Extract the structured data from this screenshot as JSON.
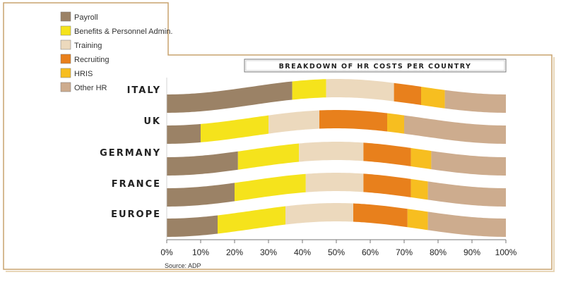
{
  "chart_data": {
    "type": "bar",
    "stacked": true,
    "orientation": "horizontal",
    "title": "BREAKDOWN OF HR COSTS PER COUNTRY",
    "source": "Source: ADP",
    "categories": [
      "ITALY",
      "UK",
      "GERMANY",
      "FRANCE",
      "EUROPE"
    ],
    "x_ticks": [
      "0%",
      "10%",
      "20%",
      "30%",
      "40%",
      "50%",
      "60%",
      "70%",
      "80%",
      "90%",
      "100%"
    ],
    "xlim": [
      0,
      100
    ],
    "legend_position": "top-left",
    "series": [
      {
        "name": "Payroll",
        "color": "#9b8266",
        "values": [
          37,
          10,
          21,
          20,
          15
        ]
      },
      {
        "name": "Benefits & Personnel Admin.",
        "color": "#f5e31c",
        "values": [
          10,
          20,
          18,
          21,
          20
        ]
      },
      {
        "name": "Training",
        "color": "#ecd9bd",
        "values": [
          20,
          15,
          19,
          17,
          20
        ]
      },
      {
        "name": "Recruiting",
        "color": "#e8801c",
        "values": [
          8,
          20,
          14,
          14,
          16
        ]
      },
      {
        "name": "HRIS",
        "color": "#f7be20",
        "values": [
          7,
          5,
          6,
          5,
          6
        ]
      },
      {
        "name": "Other HR",
        "color": "#cdac8e",
        "values": [
          18,
          30,
          22,
          23,
          23
        ]
      }
    ]
  }
}
